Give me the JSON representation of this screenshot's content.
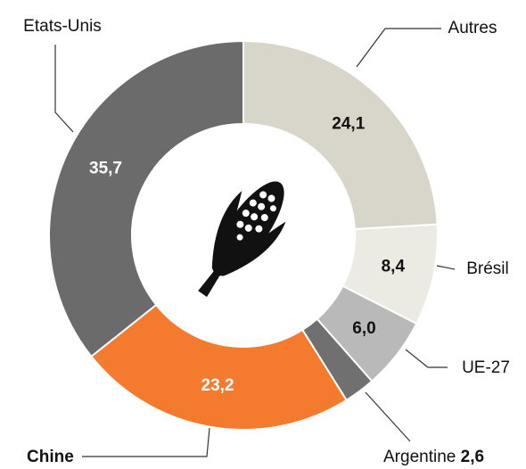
{
  "chart_data": {
    "type": "donut",
    "categories": [
      "Autres",
      "Brésil",
      "UE-27",
      "Argentine",
      "Chine",
      "Etats-Unis"
    ],
    "values": [
      24.1,
      8.4,
      6.0,
      2.6,
      23.2,
      35.7
    ],
    "value_labels": [
      "24,1",
      "8,4",
      "6,0",
      "2,6",
      "23,2",
      "35,7"
    ],
    "colors": [
      "#d8d6cb",
      "#ecebe3",
      "#b9b9b9",
      "#707070",
      "#f47a2e",
      "#6b6b6b"
    ]
  }
}
